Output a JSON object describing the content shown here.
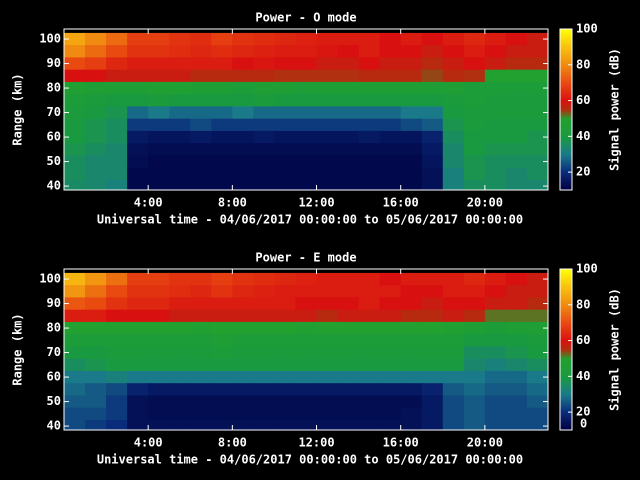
{
  "chart_data": [
    {
      "type": "heatmap",
      "title": "Power - O mode",
      "x_label": "Universal time - 04/06/2017 00:00:00 to 05/06/2017 00:00:00",
      "y_label": "Range (km)",
      "colorbar_label": "Signal power (dB)",
      "xlim": [
        0,
        23
      ],
      "ylim": [
        38.4,
        104.1
      ],
      "zlim": [
        10,
        100
      ],
      "xticks": [
        {
          "value": 4,
          "label": "4:00"
        },
        {
          "value": 8,
          "label": "8:00"
        },
        {
          "value": 12,
          "label": "12:00"
        },
        {
          "value": 16,
          "label": "16:00"
        },
        {
          "value": 20,
          "label": "20:00"
        }
      ],
      "yticks": [
        40,
        50,
        60,
        70,
        80,
        90,
        100
      ],
      "zticks": [
        20,
        40,
        60,
        80,
        100
      ],
      "x": [
        0.5,
        1.5,
        2.5,
        3.5,
        4.5,
        5.5,
        6.5,
        7.5,
        8.5,
        9.5,
        10.5,
        11.5,
        12.5,
        13.5,
        14.5,
        15.5,
        16.5,
        17.5,
        18.5,
        19.5,
        20.5,
        21.5,
        22.5
      ],
      "y": [
        100,
        95,
        90,
        85,
        80,
        75,
        70,
        65,
        60,
        55,
        50,
        45,
        40
      ],
      "z": [
        [
          85,
          80,
          75,
          68,
          68,
          66,
          65,
          68,
          66,
          65,
          64,
          63,
          62,
          62,
          62,
          60,
          62,
          60,
          62,
          64,
          62,
          60,
          58
        ],
        [
          80,
          75,
          70,
          66,
          66,
          65,
          64,
          65,
          64,
          63,
          62,
          62,
          61,
          60,
          62,
          60,
          60,
          58,
          60,
          62,
          60,
          58,
          58
        ],
        [
          70,
          68,
          64,
          62,
          62,
          62,
          62,
          62,
          60,
          61,
          60,
          60,
          58,
          58,
          60,
          58,
          58,
          56,
          58,
          60,
          58,
          56,
          56
        ],
        [
          60,
          60,
          58,
          58,
          58,
          58,
          56,
          56,
          56,
          56,
          55,
          55,
          55,
          55,
          56,
          56,
          56,
          54,
          56,
          55,
          50,
          50,
          50
        ],
        [
          48,
          46,
          46,
          46,
          48,
          48,
          46,
          46,
          44,
          46,
          46,
          45,
          46,
          46,
          46,
          46,
          46,
          46,
          46,
          44,
          44,
          44,
          44
        ],
        [
          44,
          42,
          40,
          40,
          42,
          40,
          40,
          40,
          40,
          42,
          40,
          40,
          40,
          40,
          40,
          40,
          40,
          40,
          42,
          44,
          42,
          42,
          42
        ],
        [
          42,
          40,
          38,
          28,
          30,
          28,
          28,
          28,
          30,
          28,
          28,
          28,
          28,
          28,
          28,
          28,
          30,
          30,
          40,
          42,
          42,
          42,
          42
        ],
        [
          40,
          38,
          36,
          22,
          22,
          22,
          24,
          22,
          22,
          22,
          22,
          22,
          22,
          22,
          22,
          22,
          24,
          26,
          38,
          42,
          40,
          40,
          40
        ],
        [
          40,
          38,
          36,
          16,
          15,
          15,
          16,
          15,
          15,
          16,
          15,
          15,
          15,
          15,
          16,
          15,
          15,
          18,
          36,
          40,
          40,
          40,
          38
        ],
        [
          38,
          36,
          34,
          14,
          13,
          13,
          13,
          13,
          13,
          13,
          13,
          13,
          13,
          13,
          13,
          13,
          13,
          16,
          34,
          40,
          38,
          38,
          38
        ],
        [
          36,
          34,
          34,
          13,
          12,
          12,
          12,
          12,
          12,
          12,
          12,
          12,
          12,
          12,
          12,
          12,
          12,
          15,
          34,
          38,
          36,
          36,
          36
        ],
        [
          36,
          34,
          34,
          12,
          12,
          12,
          12,
          12,
          12,
          12,
          12,
          12,
          12,
          12,
          12,
          12,
          12,
          14,
          32,
          38,
          36,
          34,
          36
        ],
        [
          35,
          34,
          32,
          12,
          12,
          12,
          12,
          12,
          12,
          12,
          12,
          12,
          12,
          12,
          12,
          12,
          12,
          14,
          32,
          36,
          36,
          34,
          34
        ]
      ]
    },
    {
      "type": "heatmap",
      "title": "Power - E mode",
      "x_label": "Universal time - 04/06/2017 00:00:00 to 05/06/2017 00:00:00",
      "y_label": "Range (km)",
      "colorbar_label": "Signal power (dB)",
      "xlim": [
        0,
        23
      ],
      "ylim": [
        38.4,
        104.1
      ],
      "zlim": [
        10,
        100
      ],
      "xticks": [
        {
          "value": 4,
          "label": "4:00"
        },
        {
          "value": 8,
          "label": "8:00"
        },
        {
          "value": 12,
          "label": "12:00"
        },
        {
          "value": 16,
          "label": "16:00"
        },
        {
          "value": 20,
          "label": "20:00"
        }
      ],
      "yticks": [
        40,
        50,
        60,
        70,
        80,
        90,
        100
      ],
      "zticks": [
        0,
        20,
        40,
        60,
        80,
        100
      ],
      "x": [
        0.5,
        1.5,
        2.5,
        3.5,
        4.5,
        5.5,
        6.5,
        7.5,
        8.5,
        9.5,
        10.5,
        11.5,
        12.5,
        13.5,
        14.5,
        15.5,
        16.5,
        17.5,
        18.5,
        19.5,
        20.5,
        21.5,
        22.5
      ],
      "y": [
        100,
        95,
        90,
        85,
        80,
        75,
        70,
        65,
        60,
        55,
        50,
        45,
        40
      ],
      "z": [
        [
          88,
          82,
          76,
          68,
          68,
          66,
          66,
          68,
          66,
          65,
          64,
          63,
          62,
          62,
          62,
          60,
          62,
          62,
          62,
          64,
          62,
          60,
          58
        ],
        [
          82,
          76,
          70,
          66,
          66,
          65,
          64,
          66,
          64,
          63,
          62,
          62,
          62,
          62,
          62,
          62,
          60,
          60,
          62,
          62,
          60,
          58,
          58
        ],
        [
          72,
          70,
          66,
          64,
          64,
          62,
          62,
          62,
          62,
          62,
          62,
          60,
          60,
          60,
          62,
          60,
          60,
          58,
          60,
          60,
          58,
          58,
          56
        ],
        [
          62,
          62,
          60,
          60,
          60,
          58,
          58,
          58,
          58,
          58,
          58,
          58,
          56,
          58,
          58,
          58,
          56,
          56,
          58,
          56,
          52,
          52,
          52
        ],
        [
          50,
          50,
          50,
          50,
          50,
          50,
          48,
          50,
          50,
          50,
          50,
          48,
          50,
          50,
          50,
          50,
          50,
          50,
          48,
          46,
          44,
          46,
          46
        ],
        [
          44,
          44,
          44,
          44,
          44,
          44,
          44,
          46,
          44,
          44,
          44,
          44,
          44,
          44,
          44,
          44,
          44,
          44,
          44,
          40,
          40,
          40,
          42
        ],
        [
          40,
          40,
          42,
          42,
          42,
          42,
          42,
          44,
          42,
          42,
          42,
          42,
          42,
          42,
          42,
          42,
          42,
          42,
          42,
          36,
          36,
          38,
          40
        ],
        [
          36,
          38,
          40,
          40,
          40,
          40,
          40,
          40,
          40,
          40,
          40,
          40,
          40,
          40,
          40,
          40,
          40,
          40,
          40,
          34,
          32,
          34,
          36
        ],
        [
          30,
          30,
          32,
          30,
          30,
          30,
          30,
          30,
          30,
          30,
          30,
          30,
          30,
          30,
          30,
          30,
          30,
          30,
          30,
          30,
          28,
          28,
          30
        ],
        [
          28,
          26,
          24,
          18,
          16,
          16,
          16,
          16,
          16,
          16,
          16,
          16,
          16,
          16,
          16,
          16,
          16,
          18,
          26,
          28,
          26,
          26,
          28
        ],
        [
          26,
          26,
          22,
          14,
          13,
          13,
          13,
          13,
          13,
          13,
          13,
          13,
          13,
          13,
          13,
          13,
          13,
          16,
          24,
          26,
          24,
          24,
          26
        ],
        [
          24,
          24,
          22,
          14,
          13,
          13,
          13,
          13,
          13,
          13,
          13,
          13,
          13,
          13,
          13,
          13,
          14,
          16,
          24,
          26,
          24,
          24,
          24
        ],
        [
          24,
          22,
          20,
          14,
          14,
          14,
          14,
          14,
          14,
          14,
          14,
          14,
          14,
          14,
          14,
          14,
          14,
          16,
          24,
          26,
          24,
          24,
          24
        ]
      ]
    }
  ]
}
